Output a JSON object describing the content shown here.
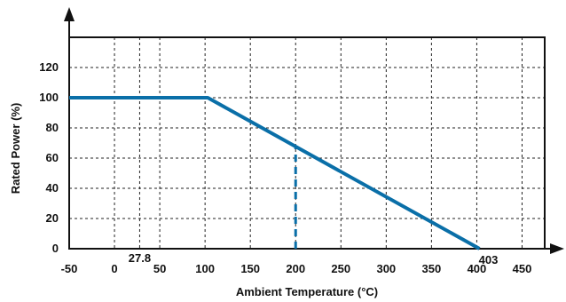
{
  "chart_data": {
    "type": "line",
    "title": "",
    "xlabel": "Ambient Temperature (°C)",
    "ylabel": "Rated Power (%)",
    "xlim": [
      -50,
      475
    ],
    "ylim": [
      0,
      140
    ],
    "x_ticks": [
      -50,
      0,
      50,
      100,
      150,
      200,
      250,
      300,
      350,
      400,
      450
    ],
    "y_ticks": [
      0,
      20,
      40,
      60,
      80,
      100,
      120
    ],
    "grid": true,
    "series": [
      {
        "name": "",
        "color": "#0a6fa8",
        "points": [
          {
            "x": -50,
            "y": 100
          },
          {
            "x": 103,
            "y": 100
          },
          {
            "x": 403,
            "y": 0
          }
        ]
      }
    ],
    "guide_line": {
      "x": 200,
      "y_from": 0,
      "y_to": 67.7,
      "style": "dashed",
      "color": "#0a6fa8"
    },
    "annotations": [
      {
        "text": "27.8",
        "x": 27.8
      },
      {
        "text": "403",
        "x": 403
      }
    ]
  }
}
